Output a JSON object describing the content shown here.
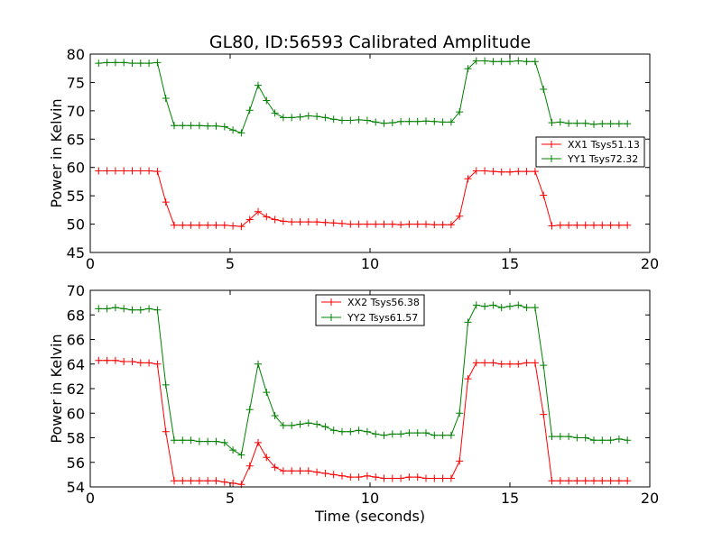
{
  "chart_data": [
    {
      "type": "line",
      "title": "GL80, ID:56593 Calibrated Amplitude",
      "xlabel": "",
      "ylabel": "Power in Kelvin",
      "xlim": [
        0,
        20
      ],
      "ylim": [
        45,
        80
      ],
      "xticks": [
        0,
        5,
        10,
        15,
        20
      ],
      "yticks": [
        45,
        50,
        55,
        60,
        65,
        70,
        75,
        80
      ],
      "grid": false,
      "legend_position": "center-right",
      "x": [
        0.3,
        0.6,
        0.9,
        1.2,
        1.5,
        1.8,
        2.1,
        2.4,
        2.7,
        3.0,
        3.3,
        3.6,
        3.9,
        4.2,
        4.5,
        4.8,
        5.1,
        5.4,
        5.7,
        6.0,
        6.3,
        6.6,
        6.9,
        7.2,
        7.5,
        7.8,
        8.1,
        8.4,
        8.7,
        9.0,
        9.3,
        9.6,
        9.9,
        10.2,
        10.5,
        10.8,
        11.1,
        11.4,
        11.7,
        12.0,
        12.3,
        12.6,
        12.9,
        13.2,
        13.5,
        13.8,
        14.1,
        14.4,
        14.7,
        15.0,
        15.3,
        15.6,
        15.9,
        16.2,
        16.5,
        16.8,
        17.1,
        17.4,
        17.7,
        18.0,
        18.3,
        18.6,
        18.9,
        19.2
      ],
      "series": [
        {
          "name": "XX1 Tsys51.13",
          "color": "#ff0000",
          "values": [
            59.4,
            59.4,
            59.4,
            59.4,
            59.4,
            59.4,
            59.4,
            59.3,
            53.9,
            49.8,
            49.8,
            49.8,
            49.8,
            49.8,
            49.8,
            49.8,
            49.7,
            49.6,
            50.8,
            52.2,
            51.3,
            50.8,
            50.5,
            50.4,
            50.4,
            50.4,
            50.4,
            50.3,
            50.2,
            50.1,
            50.0,
            50.0,
            50.0,
            50.0,
            50.0,
            50.0,
            49.9,
            50.0,
            50.0,
            50.0,
            49.9,
            49.9,
            49.9,
            51.4,
            58.0,
            59.4,
            59.4,
            59.3,
            59.2,
            59.2,
            59.3,
            59.3,
            59.3,
            55.1,
            49.7,
            49.8,
            49.8,
            49.8,
            49.8,
            49.8,
            49.8,
            49.8,
            49.8,
            49.8
          ]
        },
        {
          "name": "YY1 Tsys72.32",
          "color": "#008000",
          "values": [
            78.4,
            78.5,
            78.5,
            78.5,
            78.4,
            78.4,
            78.4,
            78.5,
            72.2,
            67.4,
            67.4,
            67.4,
            67.4,
            67.3,
            67.3,
            67.2,
            66.6,
            66.1,
            70.1,
            74.5,
            71.8,
            69.6,
            68.8,
            68.8,
            68.9,
            69.1,
            69.0,
            68.8,
            68.5,
            68.3,
            68.3,
            68.4,
            68.3,
            68.0,
            67.8,
            67.9,
            68.1,
            68.1,
            68.1,
            68.2,
            68.1,
            68.0,
            68.0,
            69.8,
            77.4,
            78.8,
            78.8,
            78.7,
            78.7,
            78.7,
            78.8,
            78.7,
            78.7,
            73.8,
            67.9,
            68.0,
            67.8,
            67.8,
            67.8,
            67.6,
            67.7,
            67.7,
            67.7,
            67.7
          ]
        }
      ]
    },
    {
      "type": "line",
      "title": "",
      "xlabel": "Time (seconds)",
      "ylabel": "Power in Kelvin",
      "xlim": [
        0,
        20
      ],
      "ylim": [
        54,
        70
      ],
      "xticks": [
        0,
        5,
        10,
        15,
        20
      ],
      "yticks": [
        54,
        56,
        58,
        60,
        62,
        64,
        66,
        68,
        70
      ],
      "grid": false,
      "legend_position": "top-center",
      "x": [
        0.3,
        0.6,
        0.9,
        1.2,
        1.5,
        1.8,
        2.1,
        2.4,
        2.7,
        3.0,
        3.3,
        3.6,
        3.9,
        4.2,
        4.5,
        4.8,
        5.1,
        5.4,
        5.7,
        6.0,
        6.3,
        6.6,
        6.9,
        7.2,
        7.5,
        7.8,
        8.1,
        8.4,
        8.7,
        9.0,
        9.3,
        9.6,
        9.9,
        10.2,
        10.5,
        10.8,
        11.1,
        11.4,
        11.7,
        12.0,
        12.3,
        12.6,
        12.9,
        13.2,
        13.5,
        13.8,
        14.1,
        14.4,
        14.7,
        15.0,
        15.3,
        15.6,
        15.9,
        16.2,
        16.5,
        16.8,
        17.1,
        17.4,
        17.7,
        18.0,
        18.3,
        18.6,
        18.9,
        19.2
      ],
      "series": [
        {
          "name": "XX2 Tsys56.38",
          "color": "#ff0000",
          "values": [
            64.3,
            64.3,
            64.3,
            64.2,
            64.2,
            64.1,
            64.1,
            64.0,
            58.5,
            54.5,
            54.5,
            54.5,
            54.5,
            54.5,
            54.5,
            54.4,
            54.3,
            54.2,
            55.7,
            57.6,
            56.4,
            55.6,
            55.3,
            55.3,
            55.3,
            55.3,
            55.2,
            55.1,
            55.0,
            54.9,
            54.8,
            54.8,
            54.9,
            54.8,
            54.7,
            54.7,
            54.7,
            54.8,
            54.8,
            54.7,
            54.7,
            54.7,
            54.7,
            56.1,
            62.8,
            64.1,
            64.1,
            64.1,
            64.0,
            64.0,
            64.0,
            64.1,
            64.1,
            59.9,
            54.5,
            54.5,
            54.5,
            54.5,
            54.5,
            54.5,
            54.5,
            54.5,
            54.5,
            54.5
          ]
        },
        {
          "name": "YY2 Tsys61.57",
          "color": "#008000",
          "values": [
            68.5,
            68.5,
            68.6,
            68.5,
            68.4,
            68.4,
            68.5,
            68.4,
            62.3,
            57.8,
            57.8,
            57.8,
            57.7,
            57.7,
            57.7,
            57.6,
            57.0,
            56.6,
            60.3,
            64.0,
            61.7,
            59.8,
            59.0,
            59.0,
            59.1,
            59.2,
            59.1,
            58.9,
            58.6,
            58.5,
            58.5,
            58.6,
            58.5,
            58.3,
            58.2,
            58.3,
            58.3,
            58.4,
            58.4,
            58.4,
            58.2,
            58.2,
            58.2,
            60.0,
            67.4,
            68.8,
            68.7,
            68.8,
            68.6,
            68.7,
            68.8,
            68.6,
            68.6,
            63.9,
            58.1,
            58.1,
            58.1,
            58.0,
            58.0,
            57.8,
            57.8,
            57.8,
            57.9,
            57.8
          ]
        }
      ]
    }
  ]
}
